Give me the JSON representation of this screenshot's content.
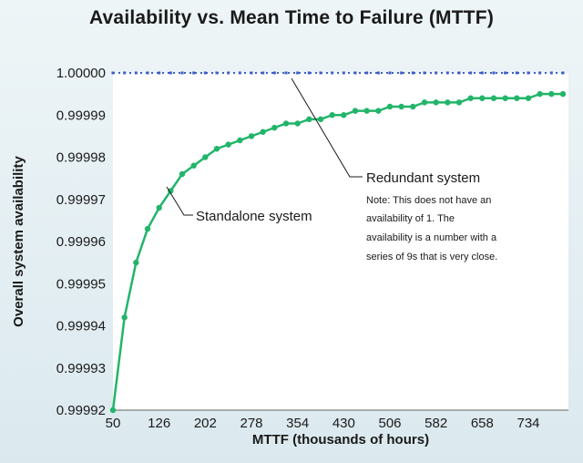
{
  "chart_data": {
    "type": "line",
    "title": "Availability vs. Mean Time to Failure (MTTF)",
    "xlabel": "MTTF (thousands of hours)",
    "ylabel": "Overall system availability",
    "x_ticks": [
      "50",
      "126",
      "202",
      "278",
      "354",
      "430",
      "506",
      "582",
      "658",
      "734"
    ],
    "y_ticks": [
      "1.00000",
      "0.99999",
      "0.99998",
      "0.99997",
      "0.99996",
      "0.99995",
      "0.99994",
      "0.99993",
      "0.99992"
    ],
    "xlim": [
      50,
      800
    ],
    "ylim": [
      0.99992,
      1.0
    ],
    "grid": false,
    "colors": {
      "standalone": "#22b56a",
      "redundant": "#3f5fc4",
      "plot_background": "#ffffff"
    },
    "series": [
      {
        "name": "Standalone system",
        "x": [
          50,
          69,
          88,
          107,
          126,
          145,
          164,
          183,
          202,
          221,
          240,
          259,
          278,
          297,
          316,
          335,
          354,
          373,
          392,
          411,
          430,
          449,
          468,
          487,
          506,
          525,
          544,
          563,
          582,
          601,
          620,
          639,
          658,
          677,
          696,
          715,
          734,
          753,
          772,
          791
        ],
        "y": [
          0.99992,
          0.999942,
          0.999955,
          0.999963,
          0.999968,
          0.999972,
          0.999976,
          0.999978,
          0.99998,
          0.999982,
          0.999983,
          0.999984,
          0.999985,
          0.999986,
          0.999987,
          0.999988,
          0.999988,
          0.999989,
          0.999989,
          0.99999,
          0.99999,
          0.999991,
          0.999991,
          0.999991,
          0.999992,
          0.999992,
          0.999992,
          0.999993,
          0.999993,
          0.999993,
          0.999993,
          0.999994,
          0.999994,
          0.999994,
          0.999994,
          0.999994,
          0.999994,
          0.999995,
          0.999995,
          0.999995
        ]
      },
      {
        "name": "Redundant system",
        "x": [
          50,
          69,
          88,
          107,
          126,
          145,
          164,
          183,
          202,
          221,
          240,
          259,
          278,
          297,
          316,
          335,
          354,
          373,
          392,
          411,
          430,
          449,
          468,
          487,
          506,
          525,
          544,
          563,
          582,
          601,
          620,
          639,
          658,
          677,
          696,
          715,
          734,
          753,
          772,
          791
        ],
        "y": [
          1,
          1,
          1,
          1,
          1,
          1,
          1,
          1,
          1,
          1,
          1,
          1,
          1,
          1,
          1,
          1,
          1,
          1,
          1,
          1,
          1,
          1,
          1,
          1,
          1,
          1,
          1,
          1,
          1,
          1,
          1,
          1,
          1,
          1,
          1,
          1,
          1,
          1,
          1,
          1
        ]
      }
    ],
    "annotations": {
      "standalone_label": "Standalone system",
      "redundant_label": "Redundant system",
      "note_lines": [
        "Note: This does not have an",
        "availability of 1.  The",
        "availability is a number with a",
        "series of 9s that is very close."
      ]
    }
  }
}
